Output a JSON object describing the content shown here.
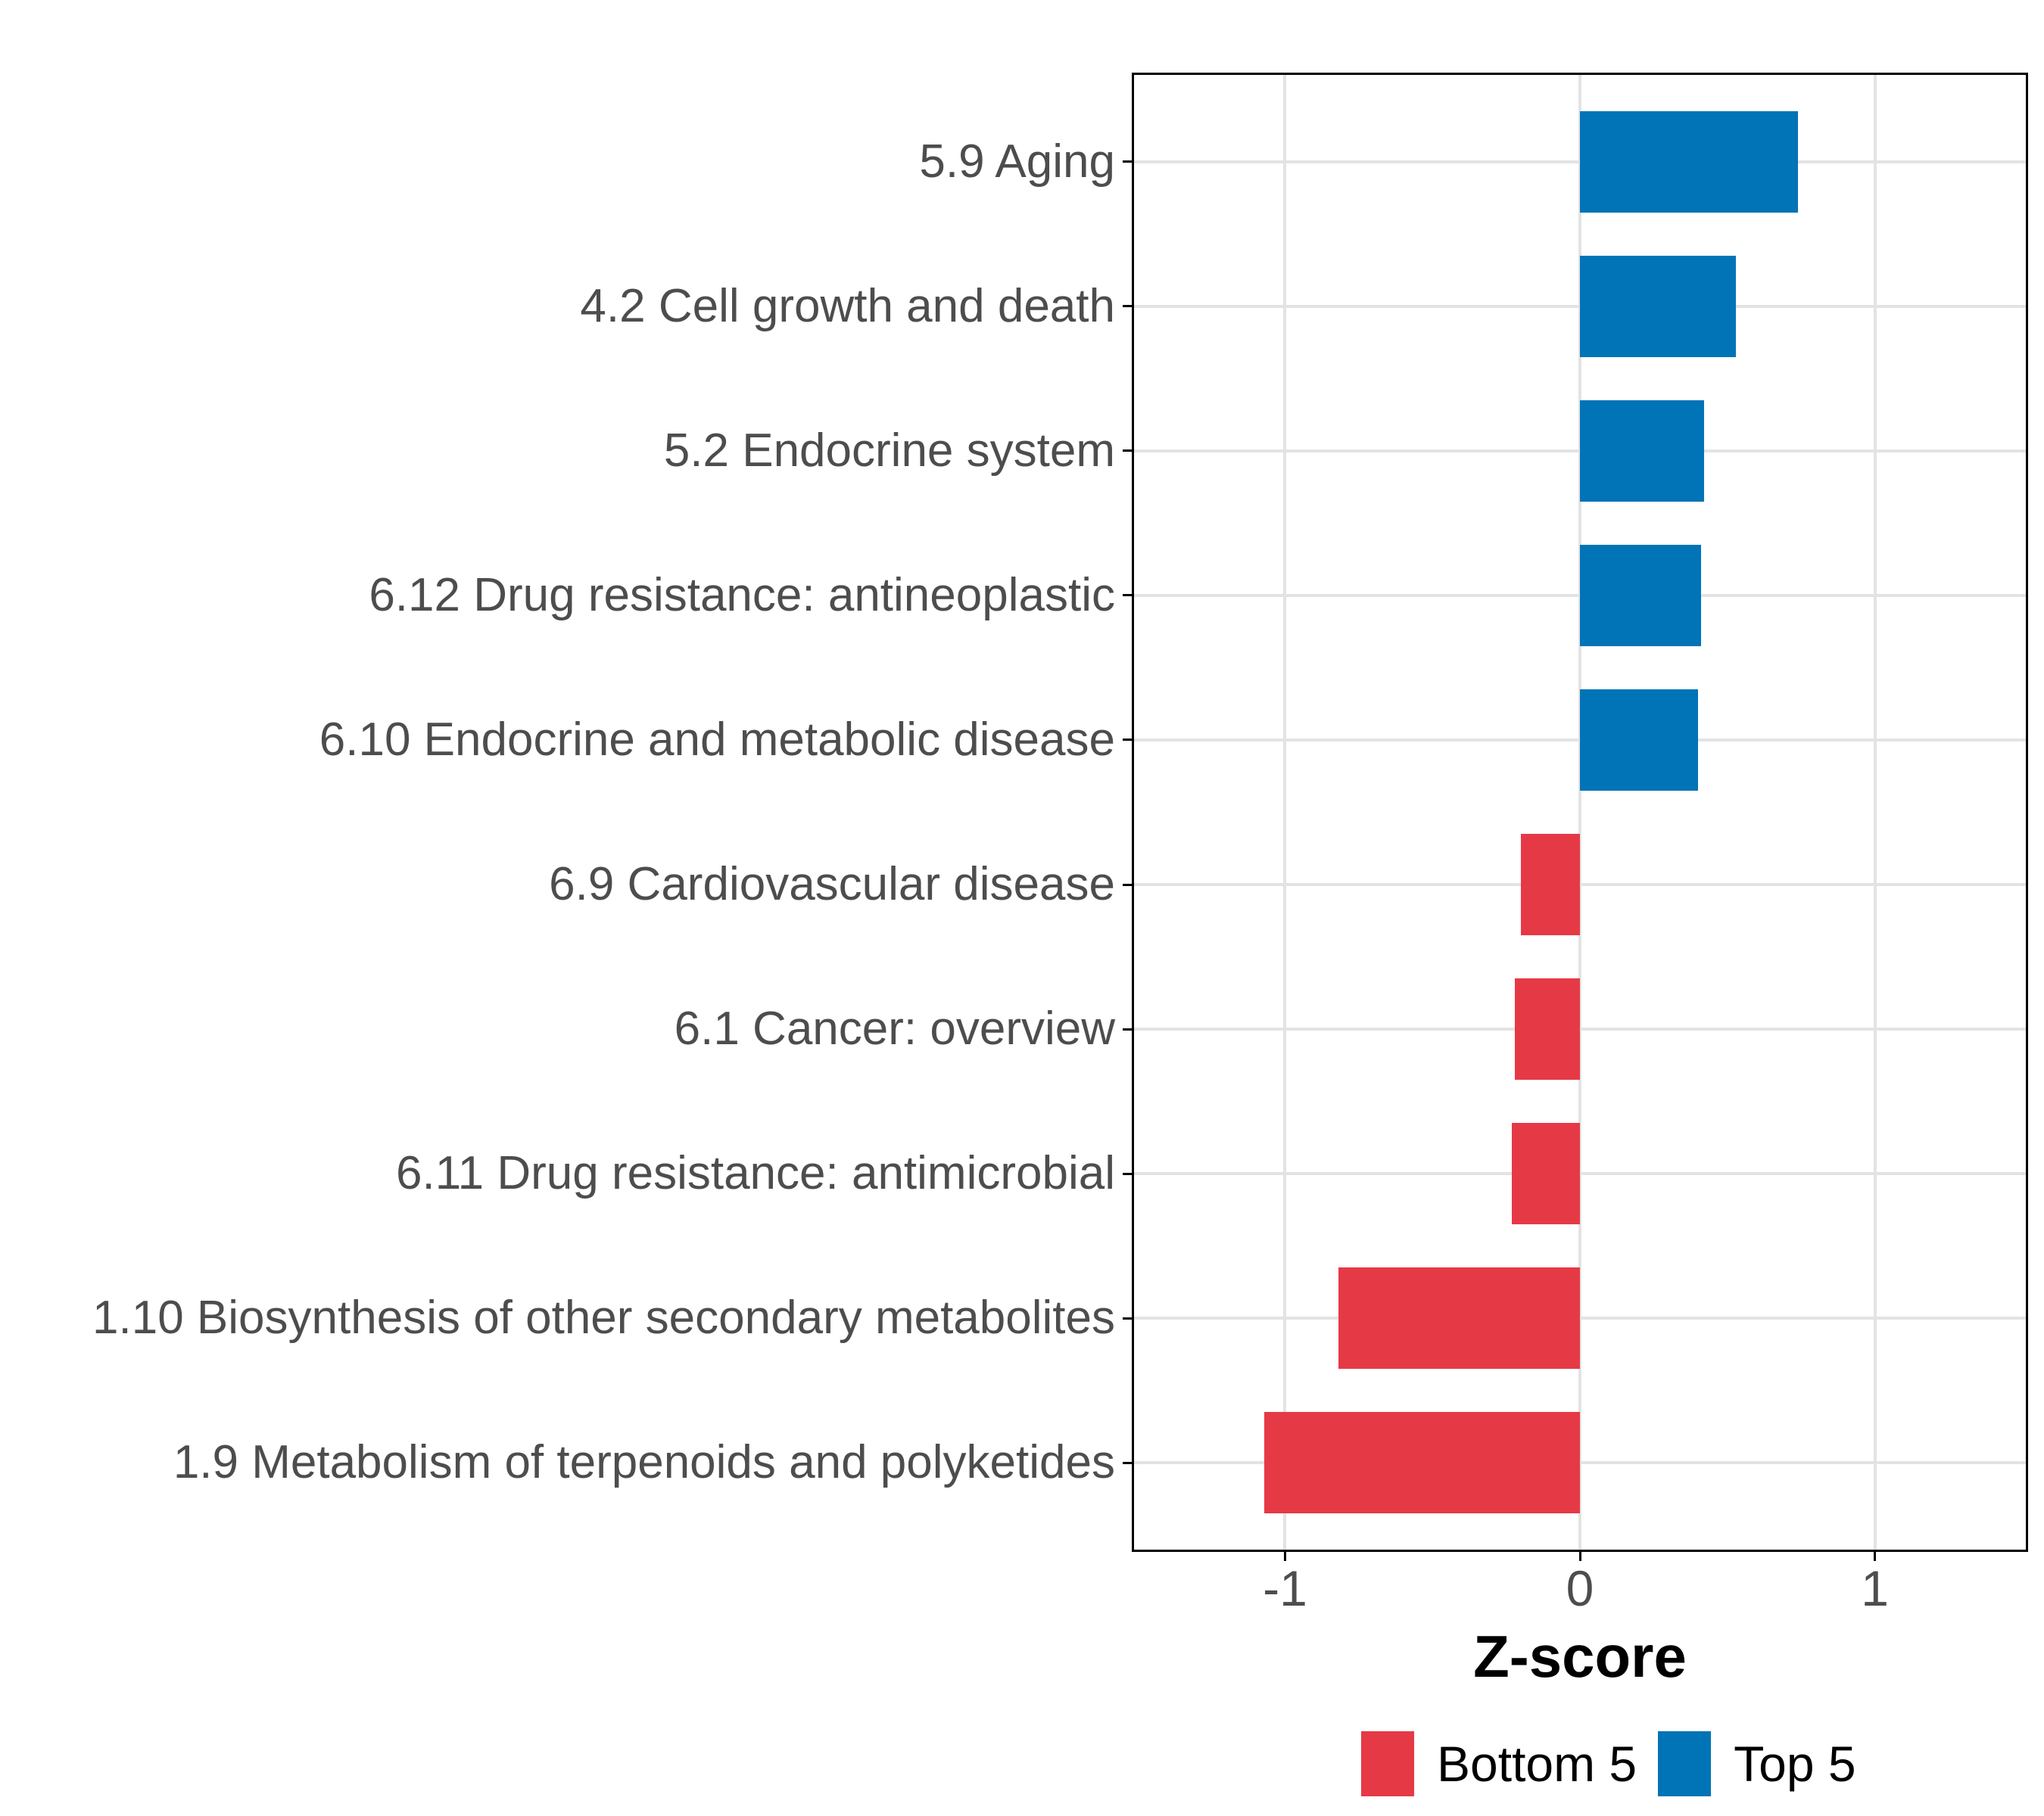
{
  "chart_data": {
    "type": "bar",
    "orientation": "horizontal",
    "title": "",
    "xlabel": "Z-score",
    "ylabel": "",
    "categories": [
      "5.9 Aging",
      "4.2 Cell growth and death",
      "5.2 Endocrine system",
      "6.12 Drug resistance: antineoplastic",
      "6.10 Endocrine and metabolic disease",
      "6.9 Cardiovascular disease",
      "6.1 Cancer: overview",
      "6.11 Drug resistance: antimicrobial",
      "1.10 Biosynthesis of other secondary metabolites",
      "1.9 Metabolism of terpenoids and polyketides"
    ],
    "series": [
      {
        "name": "Z-score",
        "values": [
          0.74,
          0.53,
          0.42,
          0.41,
          0.4,
          -0.2,
          -0.22,
          -0.23,
          -0.82,
          -1.07
        ]
      }
    ],
    "group_of_each_bar": [
      "Top 5",
      "Top 5",
      "Top 5",
      "Top 5",
      "Top 5",
      "Bottom 5",
      "Bottom 5",
      "Bottom 5",
      "Bottom 5",
      "Bottom 5"
    ],
    "group_colors": {
      "Bottom 5": "#E63946",
      "Top 5": "#0074B6"
    },
    "xlim": [
      -1.512,
      1.512
    ],
    "x_ticks": [
      -1,
      0,
      1
    ],
    "x_tick_labels": [
      "-1",
      "0",
      "1"
    ],
    "bar_relative_height": 0.7,
    "grid": "major-only",
    "gridline_color": "#E3E3E3",
    "axis_text_color": "#4d4d4d",
    "panel_border_color": "#000000",
    "legend": {
      "position": "bottom",
      "entries": [
        {
          "label": "Bottom 5",
          "color": "#E63946"
        },
        {
          "label": "Top 5",
          "color": "#0074B6"
        }
      ]
    }
  }
}
